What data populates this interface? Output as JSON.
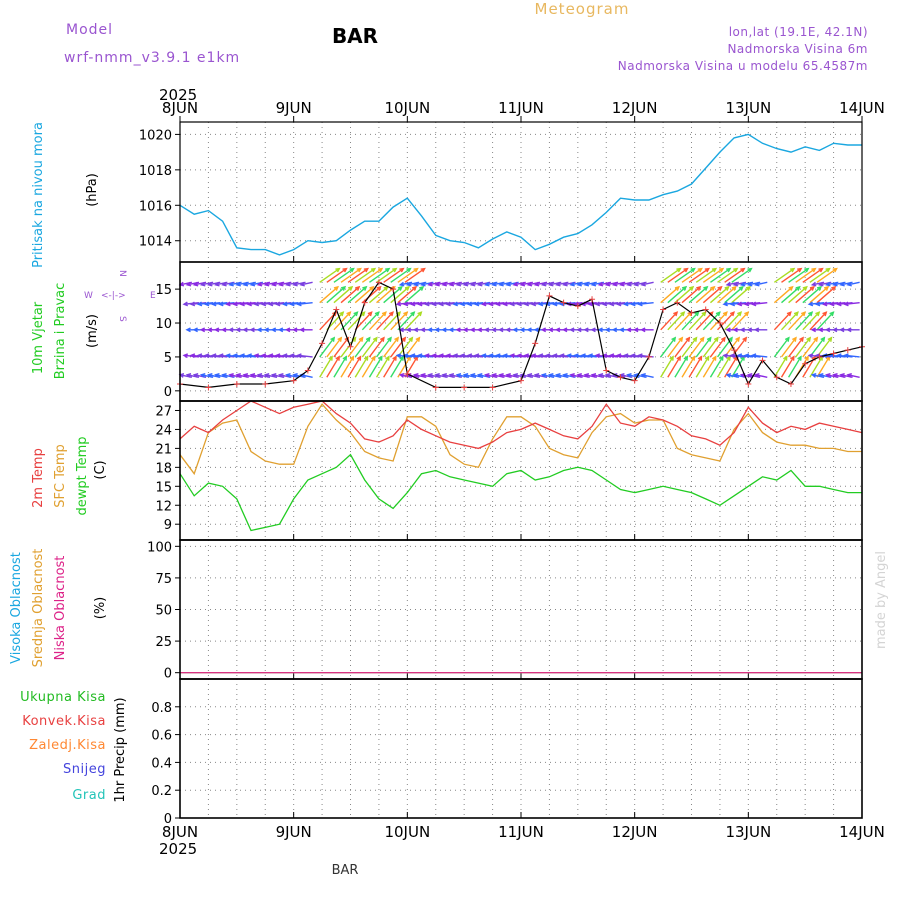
{
  "header": {
    "model_label": "Model",
    "model_name": "wrf-nmm_v3.9.1  e1km",
    "station": "BAR",
    "title": "Meteogram",
    "coords": "lon,lat (19.1E, 42.1N)",
    "elev": "Nadmorska Visina 6m",
    "elev_model": "Nadmorska Visina u modelu 65.4587m"
  },
  "footer": {
    "station": "BAR",
    "credit": "made by Angel"
  },
  "colors": {
    "pressure": "#1aa7e0",
    "temp2m": "#e84040",
    "sfc": "#e0a030",
    "dewpt": "#22cc22",
    "model": "#9a55d0",
    "title": "#e8b860",
    "precip": "#22bb22",
    "convective": "#e84040",
    "freezing": "#ff8833",
    "snow": "#4444dd",
    "graupel": "#22c4b8",
    "low_cloud": "#dd2288"
  },
  "chart_data": [
    {
      "type": "line",
      "panel": "pressure",
      "ylabel_lines": [
        "Pritisak na nivou mora"
      ],
      "unit": "(hPa)",
      "ylim": [
        1012.8,
        1020.7
      ],
      "yticks": [
        1014,
        1016,
        1018,
        1020
      ],
      "x_labels": [
        "8JUN",
        "9JUN",
        "10JUN",
        "11JUN",
        "12JUN",
        "13JUN",
        "14JUN"
      ],
      "x_year": "2025",
      "grid": true,
      "series": [
        {
          "x": [
            0,
            3,
            6,
            9,
            12,
            15,
            18,
            21,
            24,
            27,
            30,
            33,
            36,
            39,
            42,
            45,
            48,
            51,
            54,
            57,
            60,
            63,
            66,
            69,
            72,
            75,
            78,
            81,
            84,
            87,
            90,
            93,
            96,
            99,
            102,
            105,
            108,
            111,
            114,
            117,
            120,
            123,
            126,
            129,
            132,
            135,
            138,
            141,
            144
          ],
          "y": [
            1016.0,
            1015.5,
            1015.7,
            1015.1,
            1013.6,
            1013.5,
            1013.5,
            1013.2,
            1013.5,
            1014.0,
            1013.9,
            1014.0,
            1014.6,
            1015.1,
            1015.1,
            1015.9,
            1016.4,
            1015.4,
            1014.3,
            1014.0,
            1013.9,
            1013.6,
            1014.1,
            1014.5,
            1014.2,
            1013.5,
            1013.8,
            1014.2,
            1014.4,
            1014.9,
            1015.6,
            1016.4,
            1016.3,
            1016.3,
            1016.6,
            1016.8,
            1017.2,
            1018.1,
            1019.0,
            1019.8,
            1020.0,
            1019.5,
            1019.2,
            1019.0,
            1019.3,
            1019.1,
            1019.5,
            1019.4,
            1019.4
          ]
        }
      ]
    },
    {
      "type": "line",
      "panel": "wind",
      "ylabel_lines": [
        "10m Vjetar",
        "Brzina i Pravac"
      ],
      "unit": "(m/s)",
      "ylim": [
        -1.5,
        19
      ],
      "yticks": [
        0,
        5,
        10,
        15
      ],
      "grid": true,
      "compass": {
        "n": "N",
        "s": "S",
        "w": "W",
        "e": "E",
        "arrow": "<-|->"
      },
      "series": [
        {
          "name": "wind speed",
          "x": [
            0,
            6,
            12,
            18,
            24,
            27,
            30,
            33,
            36,
            39,
            42,
            45,
            48,
            54,
            60,
            66,
            72,
            75,
            78,
            81,
            84,
            87,
            90,
            93,
            96,
            99,
            102,
            105,
            108,
            111,
            114,
            117,
            120,
            123,
            126,
            129,
            132,
            135,
            138,
            141,
            144
          ],
          "y": [
            1.0,
            0.5,
            1.0,
            1.0,
            1.5,
            3.0,
            7.0,
            12.0,
            6.5,
            13.0,
            16.0,
            15.0,
            2.5,
            0.5,
            0.5,
            0.5,
            1.5,
            7.0,
            14.0,
            13.0,
            12.5,
            13.5,
            3.0,
            2.0,
            1.5,
            5.0,
            12.0,
            13.0,
            11.5,
            12.0,
            10.0,
            6.0,
            1.0,
            4.5,
            2.0,
            1.0,
            4.0,
            5.0,
            5.5,
            6.0,
            6.5
          ]
        }
      ]
    },
    {
      "type": "line",
      "panel": "temperature",
      "ylabel_lines": [
        "2m Temp",
        "SFC Temp",
        "dewpt Temp"
      ],
      "unit": "(C)",
      "ylim": [
        6.5,
        28.5
      ],
      "yticks": [
        9,
        12,
        15,
        18,
        21,
        24,
        27
      ],
      "grid": true,
      "series": [
        {
          "name": "2m Temp",
          "x": [
            0,
            3,
            6,
            9,
            12,
            15,
            18,
            21,
            24,
            27,
            30,
            33,
            36,
            39,
            42,
            45,
            48,
            51,
            54,
            57,
            60,
            63,
            66,
            69,
            72,
            75,
            78,
            81,
            84,
            87,
            90,
            93,
            96,
            99,
            102,
            105,
            108,
            111,
            114,
            117,
            120,
            123,
            126,
            129,
            132,
            135,
            138,
            141,
            144
          ],
          "y": [
            22.5,
            24.5,
            23.5,
            25.5,
            27.0,
            28.5,
            27.5,
            26.5,
            27.5,
            28.0,
            28.5,
            26.5,
            25.0,
            22.5,
            22.0,
            23.0,
            25.5,
            24.0,
            23.0,
            22.0,
            21.5,
            21.0,
            22.0,
            23.5,
            24.0,
            25.0,
            24.0,
            23.0,
            22.5,
            24.5,
            28.0,
            25.0,
            24.5,
            26.0,
            25.5,
            24.5,
            23.0,
            22.5,
            21.5,
            23.5,
            27.5,
            25.0,
            23.5,
            24.5,
            24.0,
            25.0,
            24.5,
            24.0,
            23.5
          ]
        },
        {
          "name": "SFC Temp",
          "x": [
            0,
            3,
            6,
            9,
            12,
            15,
            18,
            21,
            24,
            27,
            30,
            33,
            36,
            39,
            42,
            45,
            48,
            51,
            54,
            57,
            60,
            63,
            66,
            69,
            72,
            75,
            78,
            81,
            84,
            87,
            90,
            93,
            96,
            99,
            102,
            105,
            108,
            111,
            114,
            117,
            120,
            123,
            126,
            129,
            132,
            135,
            138,
            141,
            144
          ],
          "y": [
            20.0,
            17.0,
            23.5,
            25.0,
            25.5,
            20.5,
            19.0,
            18.5,
            18.5,
            24.5,
            28.0,
            25.5,
            23.5,
            20.5,
            19.5,
            19.0,
            26.0,
            26.0,
            24.5,
            20.0,
            18.5,
            18.0,
            22.5,
            26.0,
            26.0,
            24.5,
            21.0,
            20.0,
            19.5,
            23.5,
            26.0,
            26.5,
            25.0,
            25.5,
            25.5,
            21.0,
            20.0,
            19.5,
            19.0,
            24.0,
            26.5,
            23.5,
            22.0,
            21.5,
            21.5,
            21.0,
            21.0,
            20.5,
            20.5
          ]
        },
        {
          "name": "dewpt Temp",
          "x": [
            0,
            3,
            6,
            9,
            12,
            15,
            18,
            21,
            24,
            27,
            30,
            33,
            36,
            39,
            42,
            45,
            48,
            51,
            54,
            57,
            60,
            63,
            66,
            69,
            72,
            75,
            78,
            81,
            84,
            87,
            90,
            93,
            96,
            99,
            102,
            105,
            108,
            111,
            114,
            117,
            120,
            123,
            126,
            129,
            132,
            135,
            138,
            141,
            144
          ],
          "y": [
            17.0,
            13.5,
            15.5,
            15.0,
            13.0,
            8.0,
            8.5,
            9.0,
            13.0,
            16.0,
            17.0,
            18.0,
            20.0,
            16.0,
            13.0,
            11.5,
            14.0,
            17.0,
            17.5,
            16.5,
            16.0,
            15.5,
            15.0,
            17.0,
            17.5,
            16.0,
            16.5,
            17.5,
            18.0,
            17.5,
            16.0,
            14.5,
            14.0,
            14.5,
            15.0,
            14.5,
            14.0,
            13.0,
            12.0,
            13.5,
            15.0,
            16.5,
            16.0,
            17.5,
            15.0,
            15.0,
            14.5,
            14.0,
            14.0
          ]
        }
      ]
    },
    {
      "type": "line",
      "panel": "clouds",
      "ylabel_lines": [
        "Visoka Oblacnost",
        "Srednja Oblacnost",
        "Niska Oblacnost"
      ],
      "unit": "(%)",
      "ylim": [
        -5,
        105
      ],
      "yticks": [
        0,
        25,
        50,
        75,
        100
      ],
      "grid": true,
      "series": [
        {
          "name": "Visoka Oblacnost",
          "x": [
            0,
            144
          ],
          "y": [
            0,
            0
          ]
        },
        {
          "name": "Srednja Oblacnost",
          "x": [
            0,
            144
          ],
          "y": [
            0,
            0
          ]
        },
        {
          "name": "Niska Oblacnost",
          "x": [
            0,
            144
          ],
          "y": [
            0,
            0
          ]
        }
      ]
    },
    {
      "type": "bar",
      "panel": "precip",
      "legend": [
        "Ukupna Kisa",
        "Konvek.Kisa",
        "Zaledj.Kisa",
        "Snijeg",
        "Grad"
      ],
      "ylabel": "1hr Precip (mm)",
      "ylim": [
        0,
        1.0
      ],
      "yticks": [
        0,
        0.2,
        0.4,
        0.6,
        0.8
      ],
      "grid": true,
      "values": [
        0,
        0,
        0,
        0,
        0,
        0,
        0
      ]
    }
  ]
}
